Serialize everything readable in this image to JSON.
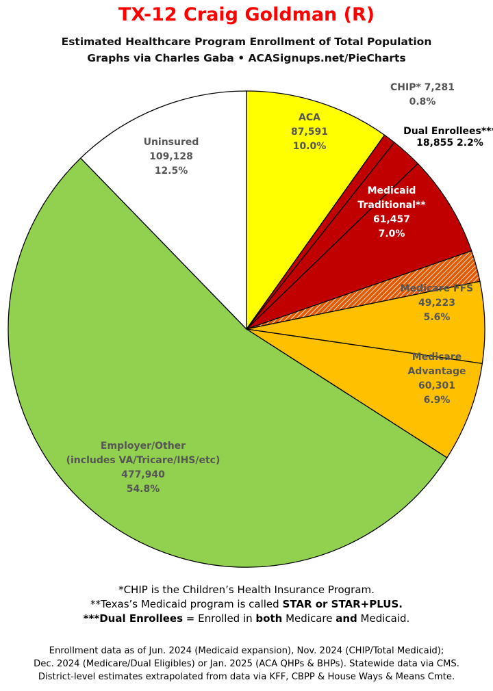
{
  "title": "TX-12 Craig Goldman (R)",
  "subtitle1": "Estimated Healthcare Program Enrollment of Total Population",
  "subtitle2": "Graphs via Charles Gaba  •  ACASignups.net/PieCharts",
  "chart_data": {
    "type": "pie",
    "start_angle_deg": 0,
    "direction": "clockwise",
    "slices": [
      {
        "key": "aca",
        "lines": [
          "ACA",
          "87,591",
          "10.0%"
        ],
        "value": 87591,
        "percent": 10.0,
        "color": "#ffff00",
        "label_color": "#555555"
      },
      {
        "key": "chip",
        "lines": [
          "CHIP* 7,281",
          "0.8%"
        ],
        "value": 7281,
        "percent": 0.8,
        "color": "#c00000",
        "label_color": "#555555"
      },
      {
        "key": "dual",
        "lines": [
          "Dual Enrollees***",
          "18,855 2.2%"
        ],
        "value": 18855,
        "percent": 2.2,
        "color": "#c00000",
        "label_color": "#000000"
      },
      {
        "key": "medicaid",
        "lines": [
          "Medicaid",
          "Traditional**",
          "61,457",
          "7.0%"
        ],
        "value": 61457,
        "percent": 7.0,
        "color": "#c00000",
        "label_color": "#ffffff"
      },
      {
        "key": "dual_hatch",
        "lines": [],
        "value": 18855,
        "percent": 2.2,
        "color": "#e05a00",
        "label_color": "#000000",
        "hatched": true
      },
      {
        "key": "medicare_ffs",
        "lines": [
          "Medicare FFS",
          "49,223",
          "5.6%"
        ],
        "value": 49223,
        "percent": 5.6,
        "color": "#ffc000",
        "label_color": "#555555"
      },
      {
        "key": "medicare_adv",
        "lines": [
          "Medicare",
          "Advantage",
          "60,301",
          "6.9%"
        ],
        "value": 60301,
        "percent": 6.9,
        "color": "#ffc000",
        "label_color": "#555555"
      },
      {
        "key": "employer",
        "lines": [
          "Employer/Other",
          "(includes VA/Tricare/IHS/etc)",
          "477,940",
          "54.8%"
        ],
        "value": 477940,
        "percent": 54.8,
        "color": "#92d050",
        "label_color": "#555555"
      },
      {
        "key": "uninsured",
        "lines": [
          "Uninsured",
          "109,128",
          "12.5%"
        ],
        "value": 109128,
        "percent": 12.5,
        "color": "#ffffff",
        "label_color": "#555555"
      }
    ]
  },
  "notes": {
    "line1": "*CHIP is the Children’s Health Insurance Program.",
    "line2_pre": "**Texas’s Medicaid program is called ",
    "line2_bold": "STAR or STAR+PLUS.",
    "line3_bold1": "***Dual Enrollees",
    "line3_mid1": " = Enrolled in ",
    "line3_bold2": "both",
    "line3_mid2": " Medicare ",
    "line3_bold3": "and",
    "line3_end": " Medicaid."
  },
  "source": {
    "line1": "Enrollment data as of Jun. 2024 (Medicaid expansion), Nov. 2024 (CHIP/Total Medicaid);",
    "line2": "Dec. 2024 (Medicare/Dual Eligibles) or Jan. 2025 (ACA QHPs & BHPs). Statewide data via CMS.",
    "line3": "District-level estimates extrapolated from data via KFF, CBPP & House Ways & Means Cmte."
  }
}
